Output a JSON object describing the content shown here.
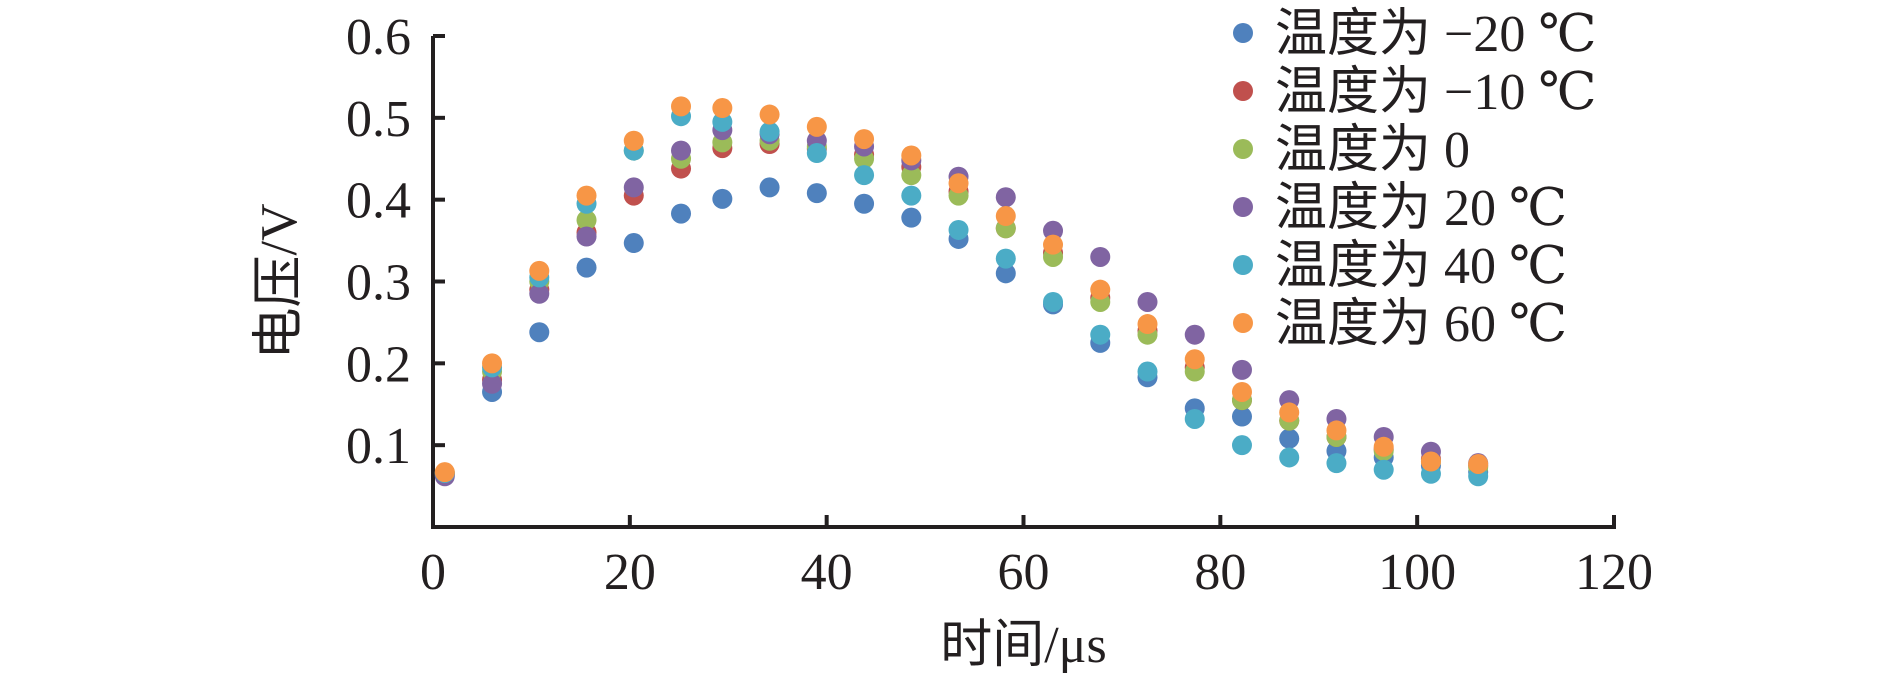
{
  "chart_data": {
    "type": "scatter",
    "xlabel": "时间/μs",
    "ylabel": "电压/V",
    "xlim": [
      0,
      120
    ],
    "ylim": [
      0,
      0.6
    ],
    "xticks": [
      "0",
      "20",
      "40",
      "60",
      "80",
      "100",
      "120"
    ],
    "yticks": [
      "0.1",
      "0.2",
      "0.3",
      "0.4",
      "0.5",
      "0.6"
    ],
    "grid": false,
    "legend_position": "top-right",
    "x": [
      1.2,
      6,
      10.8,
      15.6,
      20.4,
      25.2,
      29.4,
      34.2,
      39,
      43.8,
      48.6,
      53.4,
      58.2,
      63,
      67.8,
      72.6,
      77.4,
      82.2,
      87,
      91.8,
      96.6,
      101.4,
      106.2
    ],
    "series": [
      {
        "name": "温度为 −20 ℃",
        "color": "#4f81bd",
        "values": [
          0.064,
          0.165,
          0.238,
          0.317,
          0.347,
          0.383,
          0.401,
          0.415,
          0.408,
          0.395,
          0.378,
          0.352,
          0.31,
          0.272,
          0.225,
          0.183,
          0.145,
          0.135,
          0.108,
          0.093,
          0.085,
          0.075,
          0.067
        ]
      },
      {
        "name": "温度为 −10 ℃",
        "color": "#c0504d",
        "values": [
          0.065,
          0.18,
          0.29,
          0.36,
          0.405,
          0.438,
          0.463,
          0.468,
          0.462,
          0.455,
          0.44,
          0.41,
          0.365,
          0.335,
          0.28,
          0.24,
          0.195,
          0.155,
          0.13,
          0.11,
          0.095,
          0.083,
          0.075
        ]
      },
      {
        "name": "温度为 0",
        "color": "#9bbb59",
        "values": [
          0.066,
          0.19,
          0.3,
          0.375,
          0.46,
          0.45,
          0.47,
          0.472,
          0.465,
          0.45,
          0.43,
          0.405,
          0.365,
          0.33,
          0.275,
          0.235,
          0.19,
          0.155,
          0.13,
          0.11,
          0.093,
          0.08,
          0.073
        ]
      },
      {
        "name": "温度为 20 ℃",
        "color": "#8064a2",
        "values": [
          0.062,
          0.175,
          0.285,
          0.355,
          0.415,
          0.46,
          0.485,
          0.48,
          0.472,
          0.465,
          0.448,
          0.428,
          0.403,
          0.362,
          0.33,
          0.275,
          0.235,
          0.192,
          0.155,
          0.132,
          0.11,
          0.092,
          0.078
        ]
      },
      {
        "name": "温度为 40 ℃",
        "color": "#4bacc6",
        "values": [
          0.066,
          0.195,
          0.305,
          0.395,
          0.46,
          0.502,
          0.495,
          0.483,
          0.457,
          0.43,
          0.405,
          0.363,
          0.328,
          0.275,
          0.235,
          0.19,
          0.132,
          0.1,
          0.085,
          0.078,
          0.07,
          0.065,
          0.062
        ]
      },
      {
        "name": "温度为 60 ℃",
        "color": "#f79646",
        "values": [
          0.067,
          0.2,
          0.313,
          0.405,
          0.472,
          0.514,
          0.512,
          0.504,
          0.489,
          0.474,
          0.454,
          0.42,
          0.38,
          0.345,
          0.29,
          0.248,
          0.205,
          0.165,
          0.14,
          0.118,
          0.098,
          0.08,
          0.077
        ]
      }
    ]
  }
}
